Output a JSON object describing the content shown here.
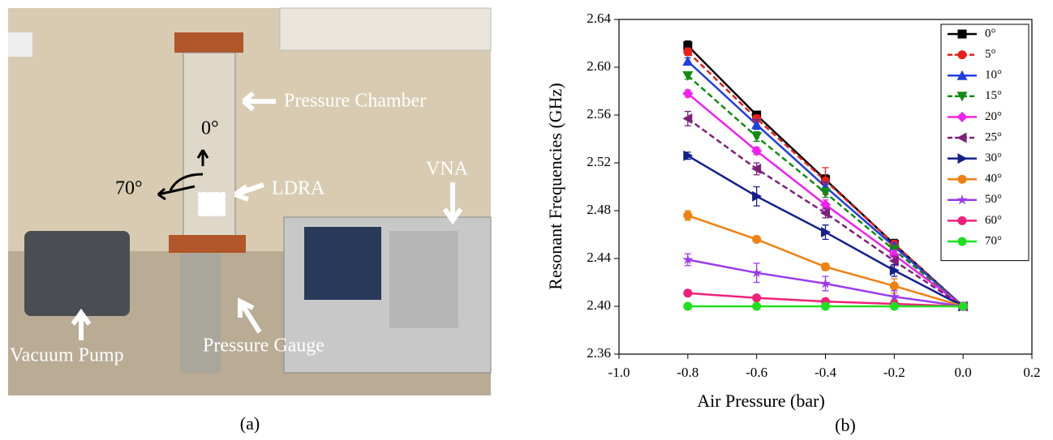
{
  "photo": {
    "labels": [
      "Pressure Chamber",
      "0°",
      "70°",
      "LDRA",
      "VNA",
      "Vacuum Pump",
      "Pressure Gauge"
    ],
    "caption": "(a)"
  },
  "chart_data": {
    "type": "line",
    "caption": "(b)",
    "x_label": "Air Pressure (bar)",
    "y_label": "Resonant Frequencies (GHz)",
    "x": [
      -0.8,
      -0.6,
      -0.4,
      -0.2,
      0.0
    ],
    "xlim": [
      -1.0,
      0.2
    ],
    "xticks": [
      {
        "value": -1.0,
        "label": "-1.0"
      },
      -0.8,
      -0.6,
      -0.4,
      -0.2,
      {
        "value": 0.0,
        "label": "0.0"
      },
      0.2
    ],
    "ylim": [
      2.36,
      2.64
    ],
    "yticks": [
      2.36,
      {
        "value": 2.4,
        "label": "2.40"
      },
      2.44,
      2.48,
      2.52,
      2.56,
      {
        "value": 2.6,
        "label": "2.60"
      },
      2.64
    ],
    "legend": "top-right",
    "series": [
      {
        "name": "0°",
        "color": "#000000",
        "marker": "square",
        "dashed": false,
        "values": [
          2.618,
          2.56,
          2.506,
          2.452,
          2.4
        ],
        "errors": [
          0.004,
          0.003,
          0.004,
          0.004,
          0.003
        ]
      },
      {
        "name": "5°",
        "color": "#e8201c",
        "marker": "circle",
        "dashed": true,
        "values": [
          2.613,
          2.557,
          2.505,
          2.452,
          2.4
        ],
        "errors": [
          0.003,
          0.003,
          0.011,
          0.003,
          0.003
        ]
      },
      {
        "name": "10°",
        "color": "#1f3fe0",
        "marker": "triangle-up",
        "dashed": false,
        "values": [
          2.605,
          2.552,
          2.5,
          2.45,
          2.4
        ],
        "errors": [
          0.003,
          0.004,
          0.004,
          0.003,
          0.003
        ]
      },
      {
        "name": "15°",
        "color": "#138a13",
        "marker": "triangle-down",
        "dashed": true,
        "values": [
          2.593,
          2.542,
          2.495,
          2.447,
          2.4
        ],
        "errors": [
          0.003,
          0.004,
          0.004,
          0.004,
          0.003
        ]
      },
      {
        "name": "20°",
        "color": "#f020f0",
        "marker": "diamond",
        "dashed": false,
        "values": [
          2.578,
          2.53,
          2.485,
          2.443,
          2.4
        ],
        "errors": [
          0.003,
          0.003,
          0.004,
          0.004,
          0.003
        ]
      },
      {
        "name": "25°",
        "color": "#7b217b",
        "marker": "triangle-left",
        "dashed": true,
        "values": [
          2.557,
          2.515,
          2.478,
          2.438,
          2.4
        ],
        "errors": [
          0.006,
          0.005,
          0.004,
          0.004,
          0.003
        ]
      },
      {
        "name": "30°",
        "color": "#141f8c",
        "marker": "triangle-right",
        "dashed": false,
        "values": [
          2.526,
          2.492,
          2.462,
          2.43,
          2.4
        ],
        "errors": [
          0.003,
          0.008,
          0.006,
          0.005,
          0.003
        ]
      },
      {
        "name": "40°",
        "color": "#f08010",
        "marker": "circle",
        "dashed": false,
        "values": [
          2.476,
          2.456,
          2.433,
          2.417,
          2.4
        ],
        "errors": [
          0.004,
          0.002,
          0.003,
          0.006,
          0.003
        ]
      },
      {
        "name": "50°",
        "color": "#9a3af0",
        "marker": "star",
        "dashed": false,
        "values": [
          2.439,
          2.428,
          2.419,
          2.408,
          2.4
        ],
        "errors": [
          0.005,
          0.008,
          0.006,
          0.005,
          0.003
        ]
      },
      {
        "name": "60°",
        "color": "#f0207a",
        "marker": "circle",
        "dashed": false,
        "values": [
          2.411,
          2.407,
          2.404,
          2.402,
          2.4
        ],
        "errors": [
          0.002,
          0.002,
          0.002,
          0.003,
          0.002
        ]
      },
      {
        "name": "70°",
        "color": "#1ee01e",
        "marker": "circle",
        "dashed": false,
        "values": [
          2.4,
          2.4,
          2.4,
          2.4,
          2.4
        ],
        "errors": [
          0.001,
          0.001,
          0.001,
          0.001,
          0.001
        ]
      }
    ]
  }
}
